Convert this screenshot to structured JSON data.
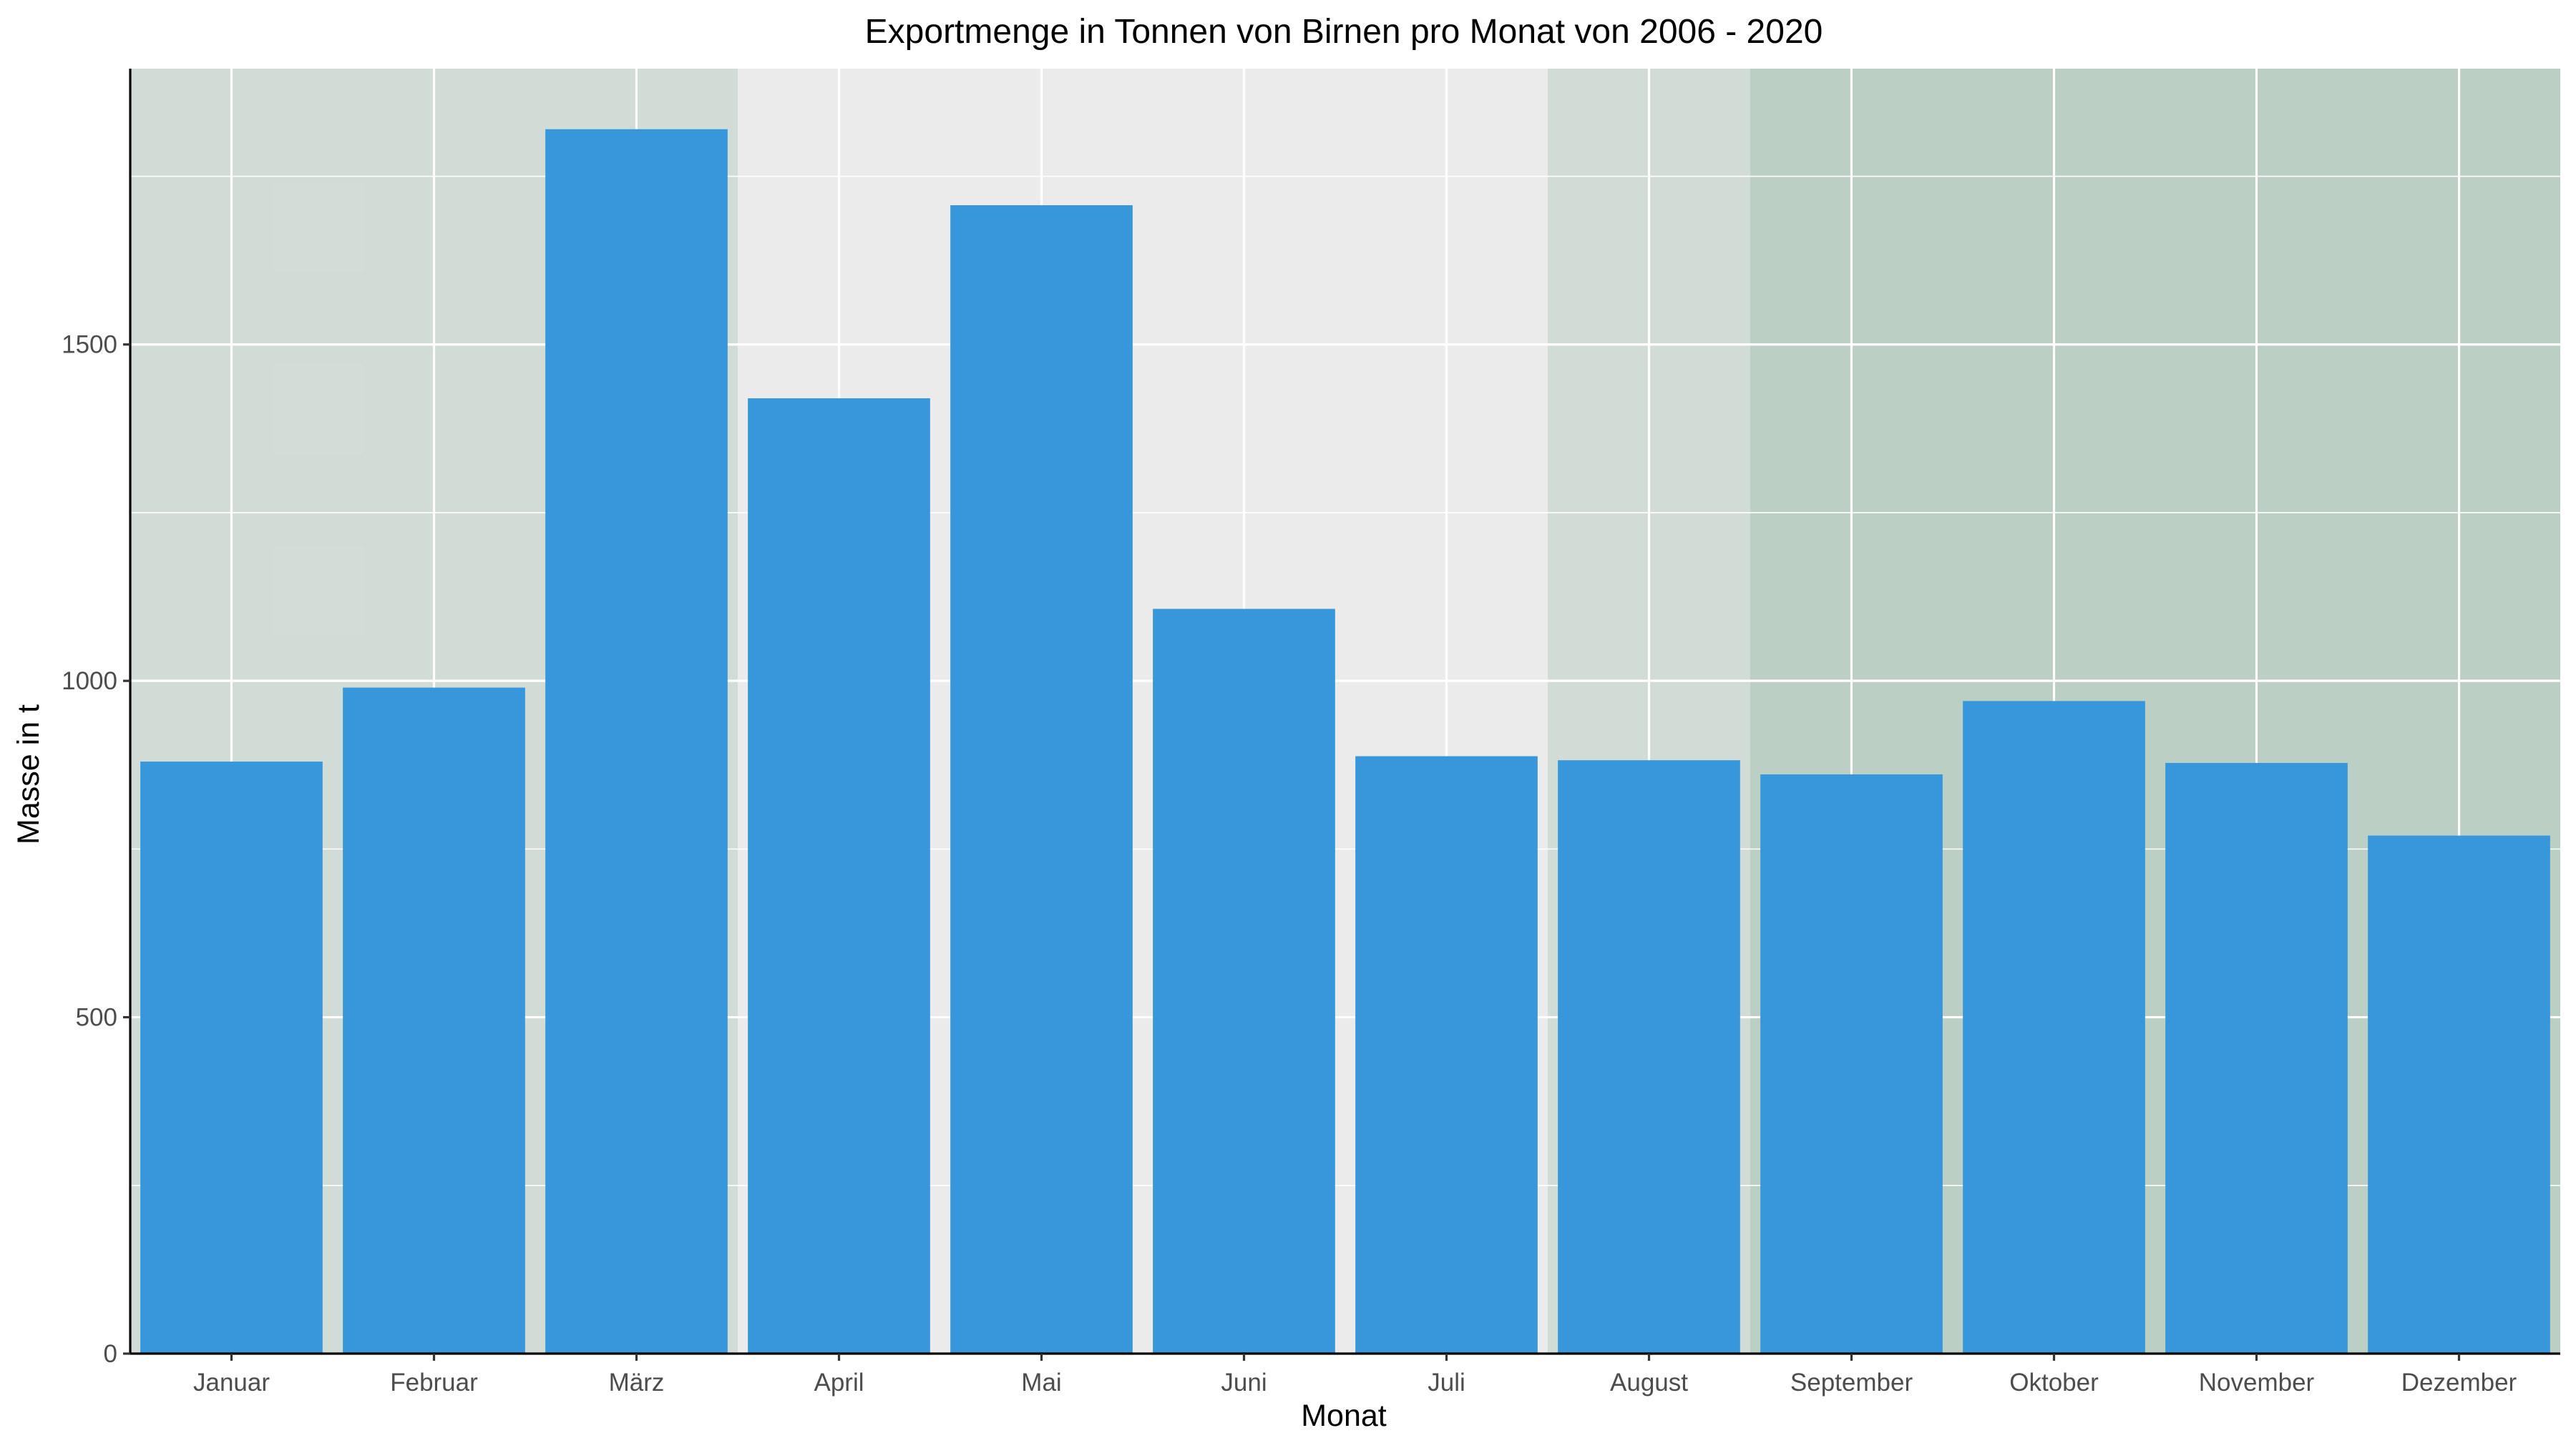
{
  "chart_data": {
    "type": "bar",
    "title": "Exportmenge in Tonnen von Birnen pro Monat von 2006 - 2020",
    "xlabel": "Monat",
    "ylabel": "Masse in t",
    "categories": [
      "Januar",
      "Februar",
      "März",
      "April",
      "Mai",
      "Juni",
      "Juli",
      "August",
      "September",
      "Oktober",
      "November",
      "Dezember"
    ],
    "values": [
      880,
      990,
      1820,
      1420,
      1707,
      1107,
      888,
      882,
      861,
      970,
      878,
      770
    ],
    "ylim": [
      0,
      1910
    ],
    "yticks": [
      0,
      500,
      1000,
      1500
    ],
    "ytick_labels": [
      "0",
      "500",
      "1000",
      "1500"
    ],
    "grid": true,
    "bar_color": "#3797da",
    "panel_color": "#ebebeb",
    "highlight_bands": [
      {
        "from_category": "Januar",
        "to_category": "März",
        "color": "#2f7a4f",
        "opacity": 0.13
      },
      {
        "from_category": "August",
        "to_category": "Dezember",
        "color": "#2f7a4f",
        "opacity": 0.13
      },
      {
        "from_category": "September",
        "to_category": "Dezember",
        "color": "#2f7a4f",
        "opacity": 0.13
      }
    ]
  }
}
